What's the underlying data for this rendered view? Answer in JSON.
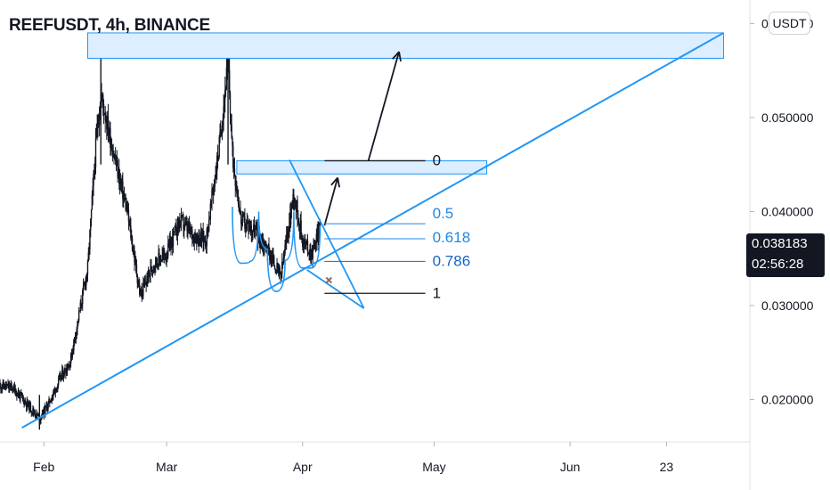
{
  "header": {
    "title": "REEFUSDT, 4h, BINANCE",
    "currency_button": "USDT"
  },
  "price_tag": {
    "price": "0.038183",
    "countdown": "02:56:28"
  },
  "colors": {
    "candle": "#131722",
    "blue": "#2196f3",
    "zone_fill": "#dceeff",
    "fib_blue": "#1e88e5",
    "fib_dark": "#131722",
    "axis_text": "#131722",
    "axis_line": "#e0e3eb"
  },
  "chart_data": {
    "type": "candlestick",
    "symbol": "REEFUSDT",
    "interval": "4h",
    "exchange": "BINANCE",
    "y_axis": {
      "unit": "USDT",
      "ticks": [
        0.06,
        0.05,
        0.04,
        0.03,
        0.02
      ],
      "tick_labels": [
        "0.060000",
        "0.050000",
        "0.040000",
        "0.030000",
        "0.020000"
      ],
      "ylim": [
        0.0155,
        0.0625
      ]
    },
    "x_axis": {
      "tick_labels": [
        "Feb",
        "Mar",
        "Apr",
        "May",
        "Jun",
        "23"
      ],
      "tick_dates": [
        "2021-02-01",
        "2021-03-01",
        "2021-04-01",
        "2021-05-01",
        "2021-06-01",
        "2021-06-23"
      ],
      "xlim": [
        "2021-01-22",
        "2021-07-12"
      ]
    },
    "ohlc_anchor_points": [
      {
        "date": "2021-01-22",
        "close": 0.0215
      },
      {
        "date": "2021-01-25",
        "close": 0.0212
      },
      {
        "date": "2021-01-28",
        "close": 0.0196
      },
      {
        "date": "2021-01-31",
        "close": 0.018
      },
      {
        "date": "2021-02-02",
        "close": 0.0195
      },
      {
        "date": "2021-02-05",
        "close": 0.0225
      },
      {
        "date": "2021-02-07",
        "close": 0.024
      },
      {
        "date": "2021-02-09",
        "close": 0.029
      },
      {
        "date": "2021-02-11",
        "close": 0.034
      },
      {
        "date": "2021-02-13",
        "close": 0.048
      },
      {
        "date": "2021-02-14",
        "close": 0.0525
      },
      {
        "date": "2021-02-17",
        "close": 0.046
      },
      {
        "date": "2021-02-20",
        "close": 0.04
      },
      {
        "date": "2021-02-23",
        "close": 0.031
      },
      {
        "date": "2021-02-26",
        "close": 0.0345
      },
      {
        "date": "2021-03-01",
        "close": 0.0355
      },
      {
        "date": "2021-03-04",
        "close": 0.039
      },
      {
        "date": "2021-03-07",
        "close": 0.0375
      },
      {
        "date": "2021-03-10",
        "close": 0.037
      },
      {
        "date": "2021-03-13",
        "close": 0.047
      },
      {
        "date": "2021-03-15",
        "close": 0.056
      },
      {
        "date": "2021-03-16",
        "close": 0.046
      },
      {
        "date": "2021-03-18",
        "close": 0.039
      },
      {
        "date": "2021-03-21",
        "close": 0.038
      },
      {
        "date": "2021-03-24",
        "close": 0.036
      },
      {
        "date": "2021-03-27",
        "close": 0.033
      },
      {
        "date": "2021-03-30",
        "close": 0.042
      },
      {
        "date": "2021-04-01",
        "close": 0.037
      },
      {
        "date": "2021-04-03",
        "close": 0.0355
      },
      {
        "date": "2021-04-05",
        "close": 0.0382
      }
    ],
    "drawings": {
      "resistance_zone_upper": {
        "from": "2021-02-11",
        "to": "2021-07-06",
        "price_top": 0.059,
        "price_bottom": 0.0563
      },
      "resistance_zone_lower": {
        "from": "2021-03-17",
        "to": "2021-05-13",
        "price_top": 0.0454,
        "price_bottom": 0.044
      },
      "ascending_trendline": {
        "from": {
          "date": "2021-01-27",
          "price": 0.017
        },
        "to": {
          "date": "2021-07-06",
          "price": 0.059
        }
      },
      "fib_retracement": {
        "levels": [
          {
            "label": "0",
            "price": 0.0454
          },
          {
            "label": "0.5",
            "price": 0.0387
          },
          {
            "label": "0.618",
            "price": 0.0371
          },
          {
            "label": "0.786",
            "price": 0.0347
          },
          {
            "label": "1",
            "price": 0.0313
          }
        ]
      }
    }
  }
}
